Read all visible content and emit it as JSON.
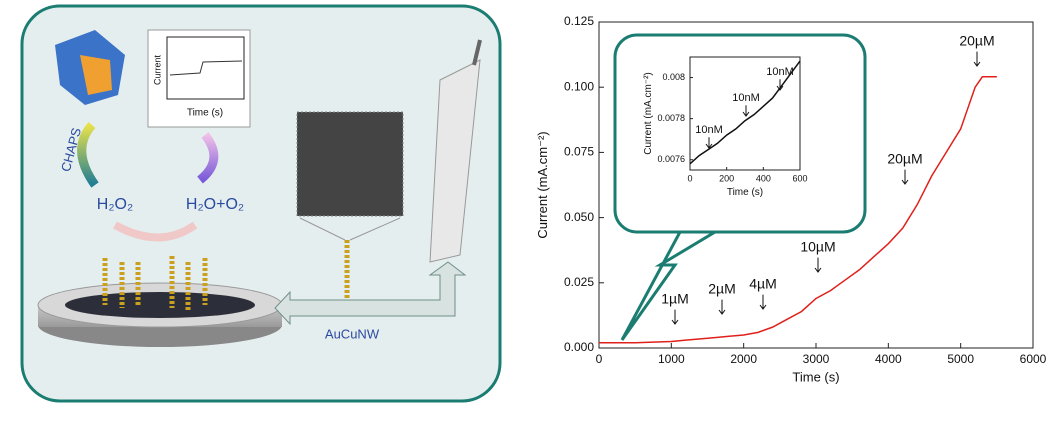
{
  "schematic": {
    "reagent": "CHAPS",
    "reactant": "H₂O₂",
    "products": "H₂O+O₂",
    "electrode": "AuCuNW",
    "mini_plot_y": "Current",
    "mini_plot_x": "Time (s)"
  },
  "chart_data": [
    {
      "type": "line",
      "xlabel": "Time (s)",
      "ylabel": "Current (mA.cm⁻²)",
      "xlim": [
        0,
        6000
      ],
      "xticks": [
        0,
        1000,
        2000,
        3000,
        4000,
        5000,
        6000
      ],
      "ylim": [
        0,
        0.125
      ],
      "yticks": [
        {
          "value": 0,
          "label": "0.000"
        },
        0.025,
        {
          "value": 0.05,
          "label": "0.050"
        },
        0.075,
        {
          "value": 0.1,
          "label": "0.100"
        },
        0.125
      ],
      "x": [
        0,
        500,
        1000,
        1200,
        1400,
        1600,
        1800,
        2000,
        2200,
        2400,
        2600,
        2800,
        3000,
        3200,
        3400,
        3600,
        3800,
        4000,
        4200,
        4400,
        4600,
        4800,
        5000,
        5100,
        5200,
        5300,
        5400,
        5500
      ],
      "series": [
        {
          "color": "#e0201b",
          "values": [
            0.002,
            0.002,
            0.0025,
            0.003,
            0.0035,
            0.004,
            0.0045,
            0.005,
            0.006,
            0.008,
            0.011,
            0.014,
            0.019,
            0.022,
            0.026,
            0.03,
            0.035,
            0.04,
            0.046,
            0.055,
            0.066,
            0.075,
            0.084,
            0.092,
            0.1,
            0.104,
            0.104,
            0.104
          ]
        }
      ],
      "annotations": [
        "1µM",
        "2µM",
        "4µM",
        "10µM",
        "20µM",
        "20µM"
      ]
    },
    {
      "type": "line",
      "xlabel": "Time (s)",
      "ylabel": "Current (mA.cm⁻²)",
      "xlim": [
        0,
        600
      ],
      "xticks": [
        0,
        200,
        400,
        600
      ],
      "ylim": [
        0.00755,
        0.0081
      ],
      "yticks": [
        0.0076,
        0.0078,
        0.008
      ],
      "x": [
        0,
        50,
        100,
        150,
        200,
        250,
        300,
        350,
        400,
        450,
        500,
        550,
        600
      ],
      "series": [
        {
          "color": "#111111",
          "values": [
            0.00758,
            0.00762,
            0.00765,
            0.00768,
            0.00772,
            0.00775,
            0.00779,
            0.00782,
            0.00786,
            0.0079,
            0.00796,
            0.00802,
            0.00808
          ]
        }
      ],
      "annotations": [
        "10nM",
        "10nM",
        "10nM"
      ]
    }
  ]
}
